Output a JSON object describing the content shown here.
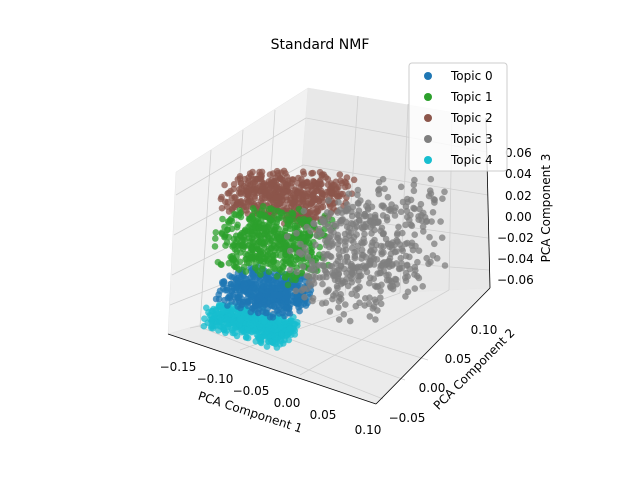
{
  "chart_data": {
    "type": "scatter",
    "projection": "3d",
    "title": "Standard NMF",
    "xlabel": "PCA Component 1",
    "ylabel": "PCA Component 2",
    "zlabel": "PCA Component 3",
    "xticks": [
      "−0.15",
      "−0.10",
      "−0.05",
      "0.00",
      "0.05",
      "0.10"
    ],
    "yticks": [
      "−0.05",
      "0.00",
      "0.05",
      "0.10"
    ],
    "zticks": [
      "−0.06",
      "−0.04",
      "−0.02",
      "0.00",
      "0.02",
      "0.04",
      "0.06"
    ],
    "xlim": [
      -0.16,
      0.12
    ],
    "ylim": [
      -0.07,
      0.14
    ],
    "zlim": [
      -0.066,
      0.066
    ],
    "grid": true,
    "legend_position": "top-right",
    "series": [
      {
        "name": "Topic 0",
        "color": "#1f77b4",
        "x_range": [
          -0.12,
          -0.03
        ],
        "y_range": [
          -0.04,
          0.02
        ],
        "z_range": [
          -0.04,
          -0.02
        ]
      },
      {
        "name": "Topic 1",
        "color": "#2ca02c",
        "x_range": [
          -0.14,
          -0.03
        ],
        "y_range": [
          -0.02,
          0.06
        ],
        "z_range": [
          -0.02,
          0.02
        ]
      },
      {
        "name": "Topic 2",
        "color": "#8c564b",
        "x_range": [
          -0.15,
          -0.02
        ],
        "y_range": [
          0.0,
          0.08
        ],
        "z_range": [
          0.02,
          0.045
        ]
      },
      {
        "name": "Topic 3",
        "color": "#7f7f7f",
        "x_range": [
          -0.05,
          0.08
        ],
        "y_range": [
          -0.01,
          0.12
        ],
        "z_range": [
          -0.04,
          0.03
        ]
      },
      {
        "name": "Topic 4",
        "color": "#17becf",
        "x_range": [
          -0.12,
          -0.02
        ],
        "y_range": [
          -0.06,
          -0.02
        ],
        "z_range": [
          -0.055,
          -0.04
        ]
      }
    ]
  }
}
